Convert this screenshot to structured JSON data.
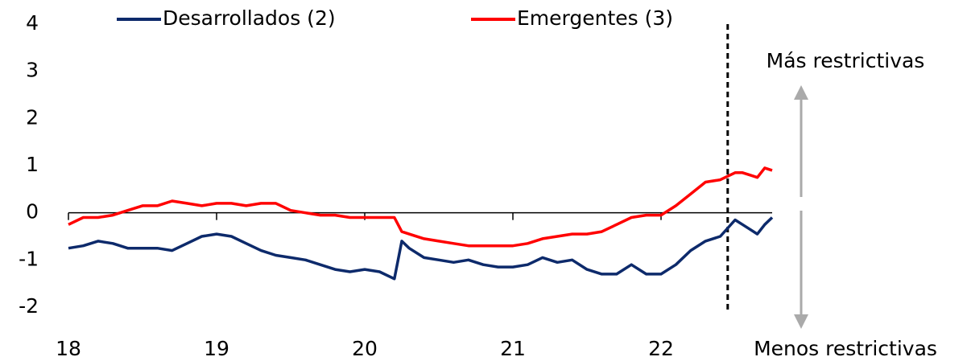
{
  "chart_data": {
    "type": "line",
    "x": [
      18,
      18.1,
      18.2,
      18.3,
      18.4,
      18.5,
      18.6,
      18.7,
      18.8,
      18.9,
      19,
      19.1,
      19.2,
      19.3,
      19.4,
      19.5,
      19.6,
      19.7,
      19.8,
      19.9,
      20,
      20.1,
      20.2,
      20.25,
      20.3,
      20.4,
      20.5,
      20.6,
      20.7,
      20.8,
      20.9,
      21,
      21.1,
      21.2,
      21.3,
      21.4,
      21.5,
      21.6,
      21.7,
      21.8,
      21.9,
      22,
      22.1,
      22.2,
      22.3,
      22.4,
      22.5,
      22.55,
      22.6,
      22.65,
      22.7,
      22.75
    ],
    "series": [
      {
        "name": "Desarrollados (2)",
        "color": "#0d2a6b",
        "values": [
          -0.75,
          -0.7,
          -0.6,
          -0.65,
          -0.75,
          -0.75,
          -0.75,
          -0.8,
          -0.65,
          -0.5,
          -0.45,
          -0.5,
          -0.65,
          -0.8,
          -0.9,
          -0.95,
          -1.0,
          -1.1,
          -1.2,
          -1.25,
          -1.2,
          -1.25,
          -1.4,
          -0.6,
          -0.75,
          -0.95,
          -1.0,
          -1.05,
          -1.0,
          -1.1,
          -1.15,
          -1.15,
          -1.1,
          -0.95,
          -1.05,
          -1.0,
          -1.2,
          -1.3,
          -1.3,
          -1.1,
          -1.3,
          -1.3,
          -1.1,
          -0.8,
          -0.6,
          -0.5,
          -0.15,
          -0.25,
          -0.35,
          -0.45,
          -0.25,
          -0.1
        ]
      },
      {
        "name": "Emergentes (3)",
        "color": "#ff0000",
        "values": [
          -0.25,
          -0.1,
          -0.1,
          -0.05,
          0.05,
          0.15,
          0.15,
          0.25,
          0.2,
          0.15,
          0.2,
          0.2,
          0.15,
          0.2,
          0.2,
          0.05,
          0,
          -0.05,
          -0.05,
          -0.1,
          -0.1,
          -0.1,
          -0.1,
          -0.4,
          -0.45,
          -0.55,
          -0.6,
          -0.65,
          -0.7,
          -0.7,
          -0.7,
          -0.7,
          -0.65,
          -0.55,
          -0.5,
          -0.45,
          -0.45,
          -0.4,
          -0.25,
          -0.1,
          -0.05,
          -0.05,
          0.15,
          0.4,
          0.65,
          0.7,
          0.85,
          0.85,
          0.8,
          0.75,
          0.95,
          0.9
        ]
      }
    ],
    "xlim": [
      18,
      22.75
    ],
    "xticks": [
      18,
      19,
      20,
      21,
      22
    ],
    "ylim": [
      -2,
      4
    ],
    "yticks": [
      -2,
      -1,
      0,
      1,
      2,
      3,
      4
    ],
    "vline": 22.45,
    "annotations": [
      "Más restrictivas",
      "Menos restrictivas"
    ],
    "grid": false
  }
}
